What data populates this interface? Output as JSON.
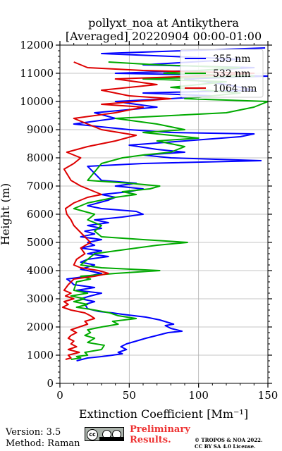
{
  "chart_data": {
    "type": "line",
    "title": "pollyxt_noa at Antikythera",
    "subtitle": "[Averaged] 20220904 00:00-01:00",
    "xlabel": "Extinction Coefficient [Mm⁻¹]",
    "ylabel": "Height (m)",
    "xlim": [
      0,
      150
    ],
    "ylim": [
      0,
      12000
    ],
    "xticks": [
      "0",
      "50",
      "100",
      "150"
    ],
    "yticks": [
      "0",
      "1000",
      "2000",
      "3000",
      "4000",
      "5000",
      "6000",
      "7000",
      "8000",
      "9000",
      "10000",
      "11000",
      "12000"
    ],
    "grid": true,
    "legend_position": "top-right",
    "series": [
      {
        "name": "355 nm",
        "color": "#0000ff",
        "points": [
          [
            12,
            800
          ],
          [
            20,
            900
          ],
          [
            30,
            950
          ],
          [
            38,
            1000
          ],
          [
            45,
            1050
          ],
          [
            42,
            1100
          ],
          [
            48,
            1200
          ],
          [
            44,
            1300
          ],
          [
            48,
            1400
          ],
          [
            55,
            1500
          ],
          [
            62,
            1600
          ],
          [
            70,
            1700
          ],
          [
            78,
            1800
          ],
          [
            88,
            1850
          ],
          [
            80,
            1950
          ],
          [
            76,
            2050
          ],
          [
            82,
            2100
          ],
          [
            72,
            2250
          ],
          [
            62,
            2350
          ],
          [
            45,
            2450
          ],
          [
            38,
            2500
          ],
          [
            28,
            2550
          ],
          [
            20,
            2650
          ],
          [
            18,
            2800
          ],
          [
            25,
            2900
          ],
          [
            15,
            3000
          ],
          [
            22,
            3100
          ],
          [
            30,
            3200
          ],
          [
            12,
            3300
          ],
          [
            25,
            3400
          ],
          [
            10,
            3500
          ],
          [
            8,
            3600
          ],
          [
            5,
            3700
          ],
          [
            20,
            3800
          ],
          [
            30,
            3900
          ],
          [
            15,
            4050
          ],
          [
            25,
            4200
          ],
          [
            15,
            4300
          ],
          [
            20,
            4400
          ],
          [
            35,
            4500
          ],
          [
            20,
            4600
          ],
          [
            30,
            4700
          ],
          [
            15,
            4800
          ],
          [
            25,
            4900
          ],
          [
            20,
            5000
          ],
          [
            30,
            5100
          ],
          [
            15,
            5200
          ],
          [
            25,
            5300
          ],
          [
            18,
            5400
          ],
          [
            30,
            5500
          ],
          [
            20,
            5600
          ],
          [
            35,
            5700
          ],
          [
            25,
            5800
          ],
          [
            45,
            5900
          ],
          [
            60,
            6000
          ],
          [
            55,
            6100
          ],
          [
            30,
            6200
          ],
          [
            20,
            6300
          ],
          [
            35,
            6500
          ],
          [
            40,
            6600
          ],
          [
            30,
            6700
          ],
          [
            50,
            6800
          ],
          [
            60,
            6900
          ],
          [
            40,
            7000
          ],
          [
            55,
            7100
          ],
          [
            30,
            7200
          ],
          [
            20,
            7700
          ],
          [
            60,
            7800
          ],
          [
            145,
            7900
          ],
          [
            80,
            8000
          ],
          [
            60,
            8100
          ],
          [
            90,
            8200
          ],
          [
            70,
            8300
          ],
          [
            50,
            8450
          ],
          [
            90,
            8600
          ],
          [
            130,
            8750
          ],
          [
            140,
            8850
          ],
          [
            80,
            8900
          ],
          [
            50,
            9000
          ],
          [
            30,
            9100
          ],
          [
            10,
            9200
          ],
          [
            40,
            9400
          ],
          [
            25,
            9600
          ],
          [
            70,
            9800
          ],
          [
            40,
            10000
          ],
          [
            80,
            10100
          ],
          [
            110,
            10200
          ],
          [
            60,
            10300
          ],
          [
            140,
            10400
          ],
          [
            120,
            10600
          ],
          [
            90,
            10800
          ],
          [
            150,
            10900
          ],
          [
            40,
            11000
          ],
          [
            100,
            11100
          ],
          [
            140,
            11200
          ],
          [
            60,
            11300
          ],
          [
            130,
            11500
          ],
          [
            30,
            11700
          ],
          [
            148,
            11900
          ]
        ]
      },
      {
        "name": "532 nm",
        "color": "#00aa00",
        "points": [
          [
            8,
            850
          ],
          [
            15,
            900
          ],
          [
            12,
            950
          ],
          [
            20,
            1000
          ],
          [
            18,
            1100
          ],
          [
            30,
            1200
          ],
          [
            32,
            1350
          ],
          [
            20,
            1450
          ],
          [
            25,
            1600
          ],
          [
            18,
            1700
          ],
          [
            22,
            1800
          ],
          [
            20,
            1900
          ],
          [
            30,
            2000
          ],
          [
            42,
            2100
          ],
          [
            38,
            2200
          ],
          [
            55,
            2300
          ],
          [
            42,
            2400
          ],
          [
            36,
            2500
          ],
          [
            25,
            2600
          ],
          [
            12,
            2700
          ],
          [
            20,
            2800
          ],
          [
            10,
            2900
          ],
          [
            18,
            3000
          ],
          [
            8,
            3100
          ],
          [
            20,
            3200
          ],
          [
            10,
            3300
          ],
          [
            12,
            3600
          ],
          [
            22,
            3700
          ],
          [
            15,
            3800
          ],
          [
            40,
            3900
          ],
          [
            72,
            4000
          ],
          [
            30,
            4100
          ],
          [
            15,
            4200
          ],
          [
            20,
            4400
          ],
          [
            25,
            4600
          ],
          [
            55,
            4800
          ],
          [
            70,
            4900
          ],
          [
            92,
            5000
          ],
          [
            60,
            5100
          ],
          [
            30,
            5200
          ],
          [
            25,
            5400
          ],
          [
            30,
            5600
          ],
          [
            20,
            5800
          ],
          [
            25,
            6000
          ],
          [
            10,
            6200
          ],
          [
            20,
            6400
          ],
          [
            30,
            6500
          ],
          [
            40,
            6600
          ],
          [
            55,
            6700
          ],
          [
            45,
            6800
          ],
          [
            65,
            6900
          ],
          [
            72,
            7000
          ],
          [
            50,
            7100
          ],
          [
            20,
            7200
          ],
          [
            30,
            7800
          ],
          [
            45,
            8000
          ],
          [
            60,
            8100
          ],
          [
            80,
            8200
          ],
          [
            90,
            8400
          ],
          [
            70,
            8600
          ],
          [
            100,
            8700
          ],
          [
            80,
            8800
          ],
          [
            60,
            8900
          ],
          [
            90,
            9000
          ],
          [
            70,
            9200
          ],
          [
            40,
            9400
          ],
          [
            120,
            9600
          ],
          [
            140,
            9800
          ],
          [
            150,
            10000
          ],
          [
            90,
            10100
          ],
          [
            130,
            10300
          ],
          [
            80,
            10500
          ],
          [
            120,
            10700
          ],
          [
            60,
            10800
          ],
          [
            140,
            10900
          ],
          [
            75,
            11000
          ],
          [
            100,
            11100
          ],
          [
            130,
            11200
          ],
          [
            70,
            11300
          ],
          [
            35,
            11400
          ]
        ]
      },
      {
        "name": "1064 nm",
        "color": "#dd0000",
        "points": [
          [
            4,
            850
          ],
          [
            8,
            900
          ],
          [
            6,
            1000
          ],
          [
            10,
            1050
          ],
          [
            14,
            1100
          ],
          [
            6,
            1200
          ],
          [
            12,
            1300
          ],
          [
            8,
            1400
          ],
          [
            10,
            1500
          ],
          [
            6,
            1600
          ],
          [
            8,
            1700
          ],
          [
            12,
            1800
          ],
          [
            8,
            1900
          ],
          [
            14,
            2000
          ],
          [
            20,
            2100
          ],
          [
            18,
            2200
          ],
          [
            25,
            2300
          ],
          [
            22,
            2400
          ],
          [
            18,
            2500
          ],
          [
            8,
            2600
          ],
          [
            2,
            2700
          ],
          [
            6,
            2800
          ],
          [
            3,
            2900
          ],
          [
            10,
            3000
          ],
          [
            4,
            3100
          ],
          [
            8,
            3200
          ],
          [
            3,
            3300
          ],
          [
            6,
            3500
          ],
          [
            10,
            3700
          ],
          [
            25,
            3800
          ],
          [
            35,
            3900
          ],
          [
            28,
            4000
          ],
          [
            15,
            4100
          ],
          [
            10,
            4200
          ],
          [
            12,
            4400
          ],
          [
            18,
            4600
          ],
          [
            15,
            4800
          ],
          [
            22,
            5000
          ],
          [
            18,
            5200
          ],
          [
            14,
            5400
          ],
          [
            10,
            5600
          ],
          [
            8,
            5800
          ],
          [
            5,
            6000
          ],
          [
            4,
            6200
          ],
          [
            10,
            6400
          ],
          [
            20,
            6600
          ],
          [
            30,
            6700
          ],
          [
            25,
            6800
          ],
          [
            15,
            7000
          ],
          [
            8,
            7200
          ],
          [
            3,
            7600
          ],
          [
            10,
            7800
          ],
          [
            15,
            8000
          ],
          [
            5,
            8200
          ],
          [
            20,
            8400
          ],
          [
            40,
            8600
          ],
          [
            55,
            8800
          ],
          [
            30,
            9000
          ],
          [
            20,
            9200
          ],
          [
            10,
            9400
          ],
          [
            40,
            9600
          ],
          [
            60,
            9800
          ],
          [
            30,
            9900
          ],
          [
            80,
            10100
          ],
          [
            50,
            10200
          ],
          [
            30,
            10400
          ],
          [
            70,
            10600
          ],
          [
            40,
            10800
          ],
          [
            100,
            10900
          ],
          [
            140,
            11000
          ],
          [
            60,
            11100
          ],
          [
            20,
            11200
          ],
          [
            10,
            11400
          ]
        ]
      }
    ]
  },
  "footer": {
    "version": "Version: 3.5",
    "method": "Method: Raman",
    "badge": "cc",
    "preliminary_line1": "Preliminary",
    "preliminary_line2": "Results.",
    "copyright_line1": "© TROPOS & NOA 2022.",
    "copyright_line2": "CC BY SA 4.0 License."
  }
}
